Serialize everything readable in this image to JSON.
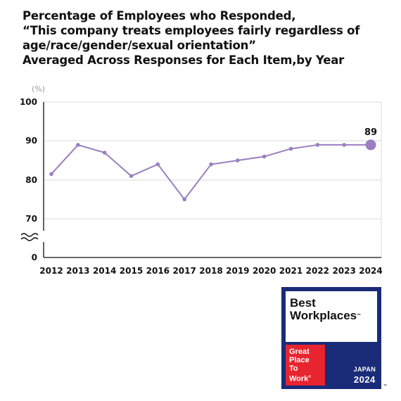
{
  "chart_data": {
    "type": "line",
    "title_lines": [
      "Percentage of Employees who Responded,",
      " “This company treats employees fairly regardless of",
      "age/race/gender/sexual orientation”",
      "Averaged Across Responses for Each Item,by Year"
    ],
    "unit_label": "(%)",
    "x": [
      "2012",
      "2013",
      "2014",
      "2015",
      "2016",
      "2017",
      "2018",
      "2019",
      "2020",
      "2021",
      "2022",
      "2023",
      "2024"
    ],
    "series": [
      {
        "values": [
          81.5,
          89,
          87,
          81,
          84,
          75,
          84,
          85,
          86,
          88,
          89,
          89,
          89
        ],
        "color": "#9b7fc0"
      }
    ],
    "y_ticks": [
      "100",
      "90",
      "80",
      "70",
      "0"
    ],
    "ylim": [
      70,
      100
    ],
    "axis_break": true,
    "highlight": {
      "x": "2024",
      "label": "89"
    },
    "grid": true
  },
  "badge": {
    "line1": "Best",
    "line2": "Workplaces",
    "tm": "™",
    "gptw_lines": [
      "Great",
      "Place",
      "To",
      "Work"
    ],
    "registered": "®",
    "country": "JAPAN",
    "year": "2024",
    "outer_tm": "™"
  }
}
